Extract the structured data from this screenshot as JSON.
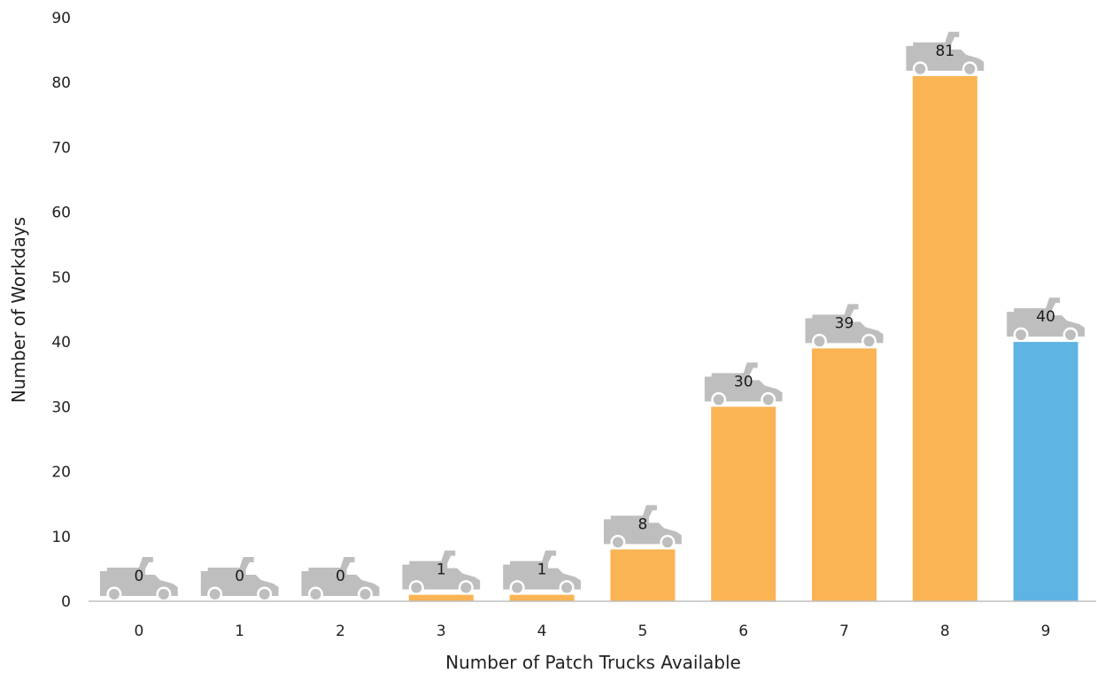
{
  "chart_data": {
    "type": "bar",
    "title": "",
    "xlabel": "Number of Patch Trucks Available",
    "ylabel": "Number of Workdays",
    "categories": [
      "0",
      "1",
      "2",
      "3",
      "4",
      "5",
      "6",
      "7",
      "8",
      "9"
    ],
    "values": [
      0,
      0,
      0,
      1,
      1,
      8,
      30,
      39,
      81,
      40
    ],
    "ylim": [
      0,
      90
    ],
    "yticks": [
      0,
      10,
      20,
      30,
      40,
      50,
      60,
      70,
      80,
      90
    ],
    "grid": false,
    "legend": "none",
    "data_label_marker": "truck-icon",
    "colors": {
      "bar": "#FAB454",
      "highlight_bar": "#5EB4E2",
      "truck_icon": "#BEBEBE",
      "axis_line": "#BFBFBF"
    },
    "highlight_index": 9
  }
}
